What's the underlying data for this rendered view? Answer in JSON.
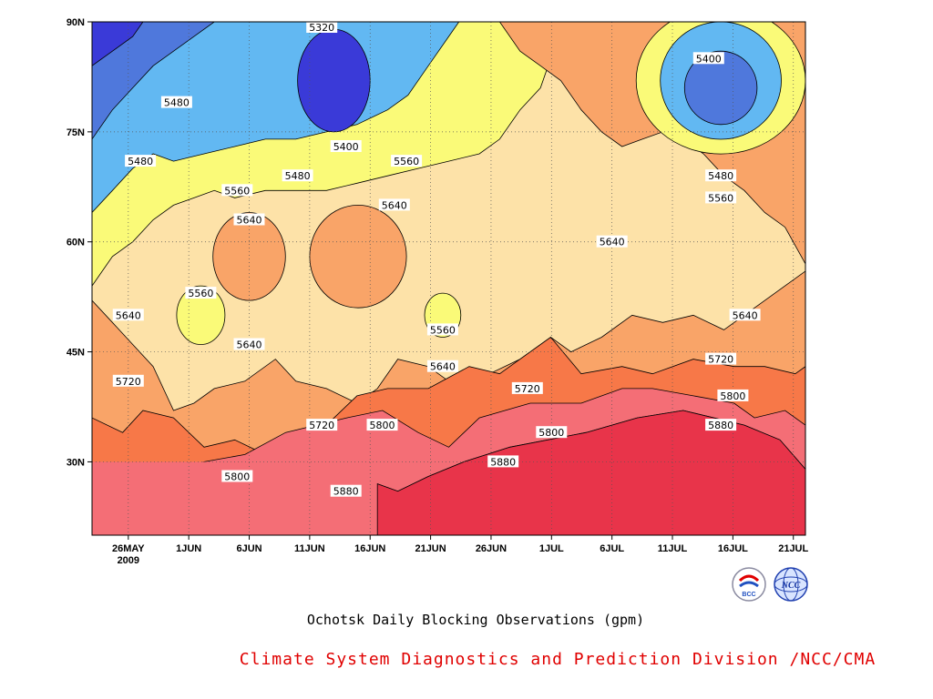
{
  "chart_data": {
    "type": "heatmap",
    "subtype": "filled-contour",
    "title": "Ochotsk Daily Blocking Observations (gpm)",
    "subtitle": "Climate System Diagnostics and Prediction Division /NCC/CMA",
    "x_ticks": [
      "26MAY",
      "1JUN",
      "6JUN",
      "11JUN",
      "16JUN",
      "21JUN",
      "26JUN",
      "1JUL",
      "6JUL",
      "11JUL",
      "16JUL",
      "21JUL"
    ],
    "x_year_label": "2009",
    "x_range": [
      "2009-05-23",
      "2009-07-21"
    ],
    "y_ticks": [
      "90N",
      "75N",
      "60N",
      "45N",
      "30N"
    ],
    "y_tick_values": [
      90,
      75,
      60,
      45,
      30
    ],
    "y_range": [
      20,
      90
    ],
    "grid": true,
    "contour_levels": [
      5320,
      5400,
      5480,
      5560,
      5640,
      5720,
      5800,
      5880
    ],
    "level_colors": [
      "#3a3ad8",
      "#4f78dc",
      "#62b8f2",
      "#fafa78",
      "#fde2a8",
      "#f9a468",
      "#f77848",
      "#f46e76",
      "#e8344a"
    ],
    "contour_labels": [
      {
        "text": "5320",
        "date": "2009-06-11",
        "lat": 90
      },
      {
        "text": "5400",
        "date": "2009-07-13",
        "lat": 85
      },
      {
        "text": "5480",
        "date": "2009-05-30",
        "lat": 79
      },
      {
        "text": "5400",
        "date": "2009-06-13",
        "lat": 73
      },
      {
        "text": "5480",
        "date": "2009-05-27",
        "lat": 71
      },
      {
        "text": "5560",
        "date": "2009-06-18",
        "lat": 71
      },
      {
        "text": "5480",
        "date": "2009-06-09",
        "lat": 69
      },
      {
        "text": "5480",
        "date": "2009-07-14",
        "lat": 69
      },
      {
        "text": "5560",
        "date": "2009-06-04",
        "lat": 67
      },
      {
        "text": "5560",
        "date": "2009-07-14",
        "lat": 66
      },
      {
        "text": "5640",
        "date": "2009-06-17",
        "lat": 65
      },
      {
        "text": "5640",
        "date": "2009-06-05",
        "lat": 63
      },
      {
        "text": "5640",
        "date": "2009-07-05",
        "lat": 60
      },
      {
        "text": "5560",
        "date": "2009-06-01",
        "lat": 53
      },
      {
        "text": "5640",
        "date": "2009-05-26",
        "lat": 50
      },
      {
        "text": "5640",
        "date": "2009-07-16",
        "lat": 50
      },
      {
        "text": "5560",
        "date": "2009-06-21",
        "lat": 48
      },
      {
        "text": "5640",
        "date": "2009-06-05",
        "lat": 46
      },
      {
        "text": "5720",
        "date": "2009-07-14",
        "lat": 44
      },
      {
        "text": "5640",
        "date": "2009-06-21",
        "lat": 43
      },
      {
        "text": "5720",
        "date": "2009-05-26",
        "lat": 41
      },
      {
        "text": "5720",
        "date": "2009-06-28",
        "lat": 40
      },
      {
        "text": "5800",
        "date": "2009-07-15",
        "lat": 39
      },
      {
        "text": "5800",
        "date": "2009-06-16",
        "lat": 35
      },
      {
        "text": "5720",
        "date": "2009-06-11",
        "lat": 35
      },
      {
        "text": "5880",
        "date": "2009-07-14",
        "lat": 35
      },
      {
        "text": "5800",
        "date": "2009-06-30",
        "lat": 34
      },
      {
        "text": "5880",
        "date": "2009-06-26",
        "lat": 30
      },
      {
        "text": "5800",
        "date": "2009-06-04",
        "lat": 28
      },
      {
        "text": "5880",
        "date": "2009-06-13",
        "lat": 26
      }
    ],
    "bands": [
      {
        "level": ">5880",
        "color": "#e8344a",
        "lower": [
          [
            56,
            27
          ],
          [
            60,
            26
          ],
          [
            66,
            28
          ],
          [
            73,
            30
          ],
          [
            82,
            32
          ],
          [
            97,
            34
          ],
          [
            107,
            36
          ],
          [
            116,
            37
          ],
          [
            128,
            35
          ],
          [
            135,
            33
          ],
          [
            140,
            29
          ]
        ],
        "upper": null
      },
      {
        "level": "5800-5880",
        "color": "#f46e76",
        "lower": [
          [
            0,
            29
          ],
          [
            4,
            26
          ],
          [
            10,
            26
          ],
          [
            16,
            29
          ],
          [
            22,
            30
          ],
          [
            30,
            31
          ],
          [
            38,
            34
          ],
          [
            44,
            35
          ],
          [
            50,
            36
          ],
          [
            57,
            37
          ],
          [
            64,
            34
          ],
          [
            70,
            32
          ],
          [
            76,
            36
          ],
          [
            86,
            38
          ],
          [
            96,
            38
          ],
          [
            104,
            40
          ],
          [
            110,
            40
          ],
          [
            118,
            39
          ],
          [
            126,
            38
          ],
          [
            130,
            36
          ],
          [
            136,
            37
          ],
          [
            140,
            35
          ]
        ]
      },
      {
        "level": "5720-5800",
        "color": "#f77848",
        "lower": [
          [
            0,
            36
          ],
          [
            6,
            34
          ],
          [
            10,
            37
          ],
          [
            16,
            36
          ],
          [
            22,
            32
          ],
          [
            28,
            33
          ],
          [
            34,
            31
          ],
          [
            40,
            34
          ],
          [
            46,
            35
          ],
          [
            52,
            39
          ],
          [
            58,
            40
          ],
          [
            66,
            40
          ],
          [
            74,
            43
          ],
          [
            80,
            42
          ],
          [
            86,
            45
          ],
          [
            90,
            47
          ],
          [
            96,
            42
          ],
          [
            104,
            43
          ],
          [
            110,
            42
          ],
          [
            118,
            44
          ],
          [
            126,
            43
          ],
          [
            132,
            43
          ],
          [
            138,
            42
          ],
          [
            140,
            43
          ]
        ]
      },
      {
        "level": "5640-5720",
        "color": "#f9a468",
        "lower": [
          [
            0,
            52
          ],
          [
            4,
            49
          ],
          [
            8,
            46
          ],
          [
            12,
            43
          ],
          [
            16,
            37
          ],
          [
            20,
            38
          ],
          [
            24,
            40
          ],
          [
            30,
            41
          ],
          [
            36,
            44
          ],
          [
            40,
            41
          ],
          [
            46,
            40
          ],
          [
            52,
            38
          ],
          [
            56,
            40
          ],
          [
            60,
            44
          ],
          [
            66,
            43
          ],
          [
            72,
            40
          ],
          [
            78,
            42
          ],
          [
            84,
            44
          ],
          [
            90,
            47
          ],
          [
            94,
            45
          ],
          [
            100,
            47
          ],
          [
            106,
            50
          ],
          [
            112,
            49
          ],
          [
            118,
            50
          ],
          [
            124,
            48
          ],
          [
            132,
            52
          ],
          [
            136,
            54
          ],
          [
            140,
            56
          ],
          [
            140,
            57
          ],
          [
            136,
            62
          ],
          [
            132,
            64
          ],
          [
            128,
            67
          ],
          [
            124,
            69
          ],
          [
            120,
            72
          ],
          [
            116,
            74
          ],
          [
            112,
            75
          ],
          [
            108,
            74
          ],
          [
            104,
            73
          ],
          [
            100,
            75
          ],
          [
            96,
            78
          ],
          [
            92,
            82
          ],
          [
            88,
            84
          ],
          [
            84,
            86
          ],
          [
            80,
            90
          ]
        ]
      },
      {
        "level": "5560-5640",
        "color": "#fde2a8",
        "lower": [
          [
            0,
            54
          ],
          [
            4,
            58
          ],
          [
            8,
            60
          ],
          [
            12,
            63
          ],
          [
            16,
            65
          ],
          [
            20,
            66
          ],
          [
            24,
            67
          ],
          [
            28,
            66
          ],
          [
            34,
            67
          ],
          [
            40,
            67
          ],
          [
            46,
            67
          ],
          [
            52,
            68
          ],
          [
            58,
            69
          ],
          [
            64,
            70
          ],
          [
            70,
            71
          ],
          [
            76,
            72
          ],
          [
            80,
            74
          ],
          [
            84,
            78
          ],
          [
            88,
            81
          ],
          [
            90,
            85
          ],
          [
            92,
            90
          ]
        ]
      },
      {
        "level": "5480-5560",
        "color": "#fafa78",
        "lower": [
          [
            0,
            64
          ],
          [
            4,
            67
          ],
          [
            8,
            70
          ],
          [
            12,
            72
          ],
          [
            16,
            71
          ],
          [
            22,
            72
          ],
          [
            28,
            73
          ],
          [
            34,
            74
          ],
          [
            40,
            74
          ],
          [
            46,
            75
          ],
          [
            52,
            76
          ],
          [
            58,
            78
          ],
          [
            62,
            80
          ],
          [
            66,
            84
          ],
          [
            70,
            88
          ],
          [
            72,
            90
          ]
        ]
      },
      {
        "level": "5400-5480",
        "color": "#62b8f2",
        "lower": [
          [
            0,
            74
          ],
          [
            4,
            78
          ],
          [
            8,
            81
          ],
          [
            12,
            84
          ],
          [
            16,
            86
          ],
          [
            20,
            88
          ],
          [
            24,
            90
          ]
        ]
      },
      {
        "level": "5320-5400",
        "color": "#4f78dc",
        "lower": [
          [
            0,
            84
          ],
          [
            4,
            86
          ],
          [
            8,
            88
          ],
          [
            10,
            90
          ]
        ]
      }
    ],
    "islands": [
      {
        "level": "5640-5720",
        "color": "#f9a468",
        "center": [
          "2009-06-05",
          58
        ],
        "rx": 3,
        "ry": 6
      },
      {
        "level": "5640-5720",
        "color": "#f9a468",
        "center": [
          "2009-06-14",
          58
        ],
        "rx": 4,
        "ry": 7
      },
      {
        "level": "5480-5560",
        "color": "#fafa78",
        "center": [
          "2009-06-01",
          50
        ],
        "rx": 2,
        "ry": 4
      },
      {
        "level": "5480-5560",
        "color": "#fafa78",
        "center": [
          "2009-06-21",
          50
        ],
        "rx": 1.5,
        "ry": 3
      },
      {
        "level": "5320-5400",
        "color": "#3a3ad8",
        "center": [
          "2009-06-12",
          82
        ],
        "rx": 3,
        "ry": 7
      },
      {
        "level": "5480-5560",
        "color": "#fafa78",
        "center": [
          "2009-07-14",
          82
        ],
        "rx": 7,
        "ry": 10
      },
      {
        "level": "5400-5480",
        "color": "#62b8f2",
        "center": [
          "2009-07-14",
          82
        ],
        "rx": 5,
        "ry": 8
      },
      {
        "level": "5320-5400",
        "color": "#4f78dc",
        "center": [
          "2009-07-14",
          81
        ],
        "rx": 3,
        "ry": 5
      }
    ]
  },
  "title": "Ochotsk Daily Blocking Observations (gpm)",
  "organization": "Climate System Diagnostics and Prediction Division /NCC/CMA",
  "logos": {
    "bcc": "BCC",
    "ncc": "NCC"
  }
}
